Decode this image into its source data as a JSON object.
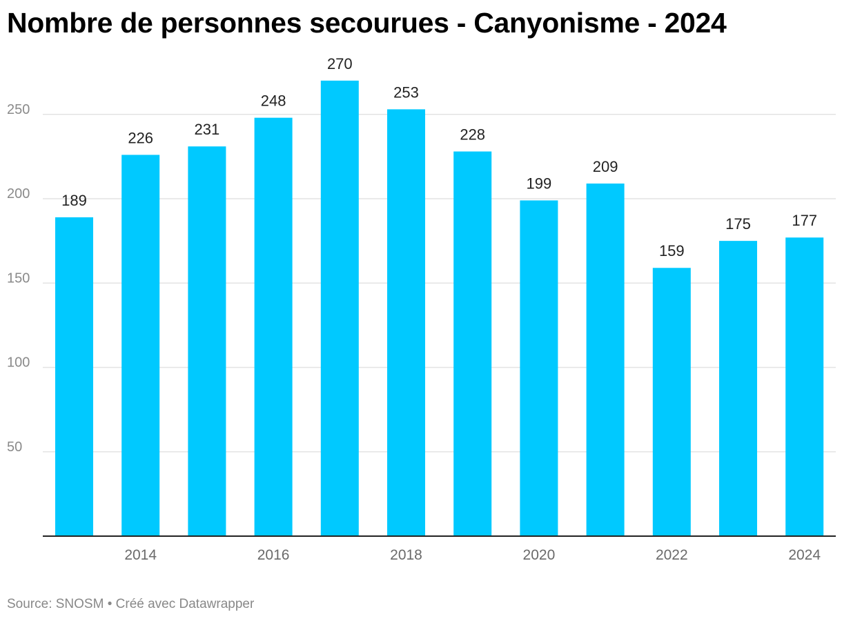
{
  "chart_data": {
    "type": "bar",
    "title": "Nombre de personnes secourues - Canyonisme - 2024",
    "xlabel": "",
    "ylabel": "",
    "categories": [
      "2013",
      "2014",
      "2015",
      "2016",
      "2017",
      "2018",
      "2019",
      "2020",
      "2021",
      "2022",
      "2023",
      "2024"
    ],
    "x_tick_labels": [
      "2014",
      "2016",
      "2018",
      "2020",
      "2022",
      "2024"
    ],
    "values": [
      189,
      226,
      231,
      248,
      270,
      253,
      228,
      199,
      209,
      159,
      175,
      177
    ],
    "ylim": [
      0,
      270
    ],
    "y_ticks": [
      50,
      100,
      150,
      200,
      250
    ],
    "grid": true,
    "data_labels": true,
    "legend": "none",
    "bar_color": "#00c9ff",
    "source": "Source: SNOSM • Créé avec Datawrapper"
  }
}
